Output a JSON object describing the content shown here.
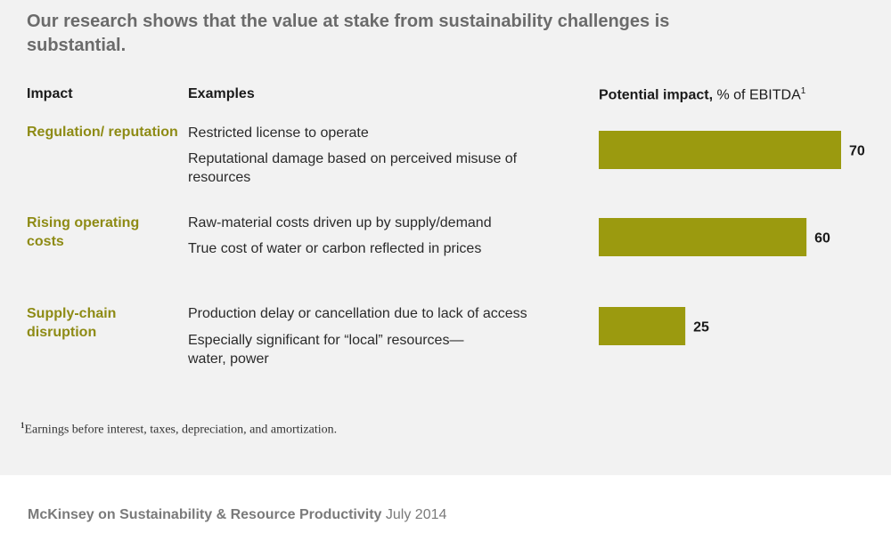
{
  "title": "Our research shows that the value at stake from sustainability challenges is substantial.",
  "headers": {
    "impact": "Impact",
    "examples": "Examples",
    "potential_bold": "Potential impact,",
    "potential_unit": "% of EBITDA",
    "potential_sup": "1"
  },
  "rows": [
    {
      "category": "Regulation/ reputation",
      "examples": [
        "Restricted license to operate",
        "Reputational damage based on perceived misuse of resources"
      ]
    },
    {
      "category": "Rising operating costs",
      "examples": [
        "Raw-material costs driven up by supply/demand",
        "True cost of water or carbon reflected in prices"
      ]
    },
    {
      "category": "Supply-chain disruption",
      "examples": [
        "Production delay or cancellation due to lack of access",
        "Especially significant for “local” resources— water, power"
      ]
    }
  ],
  "chart_data": {
    "type": "bar",
    "orientation": "horizontal",
    "categories": [
      "Regulation/ reputation",
      "Rising operating costs",
      "Supply-chain disruption"
    ],
    "values": [
      70,
      60,
      25
    ],
    "labels": [
      "70",
      "60",
      "25"
    ],
    "title": "Potential impact, % of EBITDA",
    "xlabel": "% of EBITDA",
    "xlim": [
      0,
      70
    ],
    "bar_color": "#9b9a0f"
  },
  "footnote": {
    "marker": "1",
    "text": "Earnings before interest, taxes, depreciation, and amortization."
  },
  "source": {
    "publication": "McKinsey on Sustainability & Resource Productivity",
    "date": "July 2014"
  },
  "colors": {
    "accent": "#8e8b15",
    "title": "#6b6b6b",
    "panel": "#f2f2f2"
  }
}
